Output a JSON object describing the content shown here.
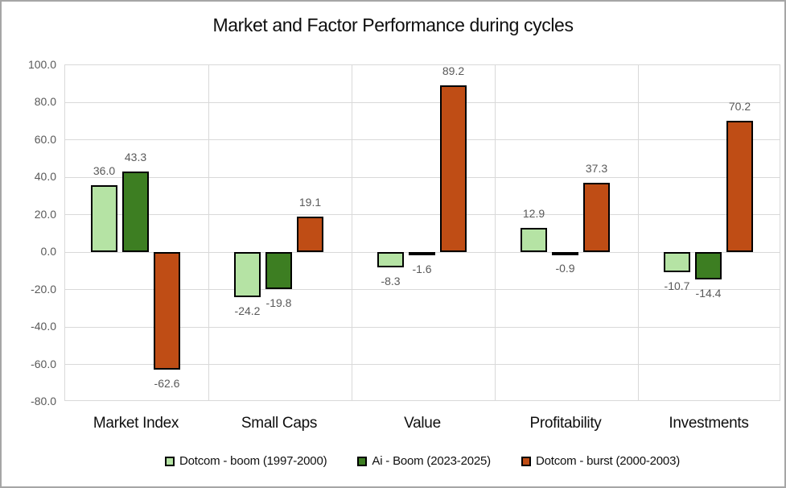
{
  "window": {
    "background": "#ffffff",
    "frame_border_color": "#a6a6a6"
  },
  "chart_data": {
    "type": "bar",
    "title": "Market and Factor Performance during cycles",
    "categories": [
      "Market Index",
      "Small Caps",
      "Value",
      "Profitability",
      "Investments"
    ],
    "series": [
      {
        "name": "Dotcom - boom (1997-2000)",
        "color": "#b5e3a4",
        "values": [
          36.0,
          -24.2,
          -8.3,
          12.9,
          -10.7
        ]
      },
      {
        "name": "Ai - Boom (2023-2025)",
        "color": "#3d7e22",
        "values": [
          43.3,
          -19.8,
          -1.6,
          -0.9,
          -14.4
        ]
      },
      {
        "name": "Dotcom - burst (2000-2003)",
        "color": "#bf4d15",
        "values": [
          -62.6,
          19.1,
          89.2,
          37.3,
          70.2
        ]
      }
    ],
    "ylim": [
      -80,
      100
    ],
    "ytick_step": 20,
    "ytick_labels": [
      "100.0",
      "80.0",
      "60.0",
      "40.0",
      "20.0",
      "0.0",
      "-20.0",
      "-40.0",
      "-60.0",
      "-80.0"
    ],
    "xlabel": "",
    "ylabel": "",
    "grid": true,
    "legend_position": "bottom",
    "data_labels_shown": true,
    "bar_border_color": "#000000",
    "gridline_color": "#d9d9d9",
    "axis_label_color": "#595959",
    "title_color": "#0f0f0f"
  }
}
